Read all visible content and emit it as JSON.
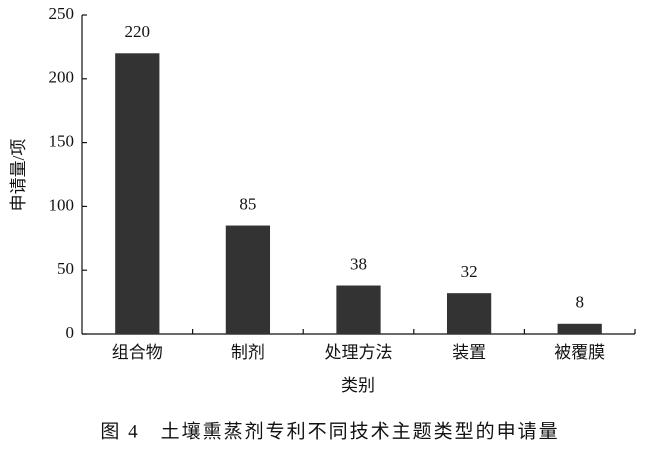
{
  "chart_data": {
    "type": "bar",
    "title": "图 4　土壤熏蒸剂专利不同技术主题类型的申请量",
    "xlabel": "类别",
    "ylabel": "申请量/项",
    "categories": [
      "组合物",
      "制剂",
      "处理方法",
      "装置",
      "被覆膜"
    ],
    "values": [
      220,
      85,
      38,
      32,
      8
    ],
    "color": "#333333",
    "ylim": [
      0,
      250
    ],
    "yticks": [
      0,
      50,
      100,
      150,
      200,
      250
    ],
    "grid": false
  }
}
